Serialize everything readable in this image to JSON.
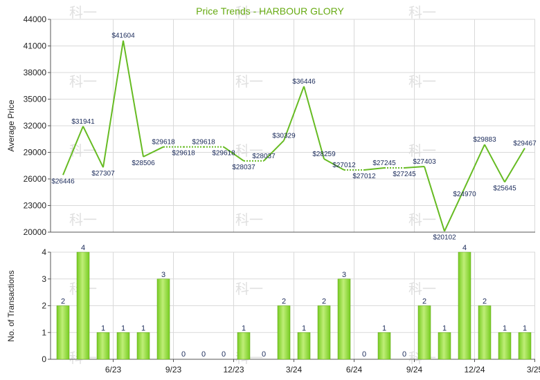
{
  "colors": {
    "line": "#66bb22",
    "bar": "#77cc22",
    "bar_light": "#bfee77",
    "grid": "#d9d9d9",
    "axis": "#555555",
    "title": "#66aa11",
    "watermark": "#e0e0e0"
  },
  "chart_data": [
    {
      "type": "line",
      "title": "Price Trends - HARBOUR GLORY",
      "ylabel": "Average Price",
      "ylim": [
        20000,
        44000
      ],
      "yticks": [
        20000,
        23000,
        26000,
        29000,
        32000,
        35000,
        38000,
        41000,
        44000
      ],
      "x_ticks": [
        "6/23",
        "9/23",
        "12/23",
        "3/24",
        "6/24",
        "9/24",
        "12/24",
        "3/25"
      ],
      "x_tick_months": [
        2,
        5,
        8,
        11,
        14,
        17,
        20,
        23
      ],
      "x_months": [
        0,
        1,
        2,
        3,
        4,
        5,
        6,
        7,
        8,
        9,
        10,
        11,
        12,
        13,
        14,
        15,
        16,
        17,
        18,
        19,
        20,
        21,
        22,
        23
      ],
      "points": [
        {
          "month": 0,
          "value": 26446,
          "label": "$26446",
          "actual": true
        },
        {
          "month": 1,
          "value": 31941,
          "label": "$31941",
          "actual": true
        },
        {
          "month": 2,
          "value": 27307,
          "label": "$27307",
          "actual": true
        },
        {
          "month": 3,
          "value": 41604,
          "label": "$41604",
          "actual": true
        },
        {
          "month": 4,
          "value": 28506,
          "label": "$28506",
          "actual": true
        },
        {
          "month": 5,
          "value": 29618,
          "label": "$29618",
          "actual": true
        },
        {
          "month": 6,
          "value": 29618,
          "label": "$29618",
          "actual": false
        },
        {
          "month": 7,
          "value": 29618,
          "label": "$29618",
          "actual": false
        },
        {
          "month": 8,
          "value": 29618,
          "label": "$29618",
          "actual": false
        },
        {
          "month": 9,
          "value": 28037,
          "label": "$28037",
          "actual": true
        },
        {
          "month": 10,
          "value": 28037,
          "label": "$28037",
          "actual": false
        },
        {
          "month": 11,
          "value": 30329,
          "label": "$30329",
          "actual": true
        },
        {
          "month": 12,
          "value": 36446,
          "label": "$36446",
          "actual": true
        },
        {
          "month": 13,
          "value": 28259,
          "label": "$28259",
          "actual": true
        },
        {
          "month": 14,
          "value": 27012,
          "label": "$27012",
          "actual": true
        },
        {
          "month": 15,
          "value": 27012,
          "label": "$27012",
          "actual": false
        },
        {
          "month": 16,
          "value": 27245,
          "label": "$27245",
          "actual": true
        },
        {
          "month": 17,
          "value": 27245,
          "label": "$27245",
          "actual": false
        },
        {
          "month": 18,
          "value": 27403,
          "label": "$27403",
          "actual": true
        },
        {
          "month": 19,
          "value": 20102,
          "label": "$20102",
          "actual": true
        },
        {
          "month": 20,
          "value": 24970,
          "label": "$24970",
          "actual": true
        },
        {
          "month": 21,
          "value": 29883,
          "label": "$29883",
          "actual": true
        },
        {
          "month": 22,
          "value": 25645,
          "label": "$25645",
          "actual": true
        },
        {
          "month": 23,
          "value": 29467,
          "label": "$29467",
          "actual": true
        }
      ],
      "grid": true
    },
    {
      "type": "bar",
      "ylabel": "No. of Transactions",
      "ylim": [
        0,
        4
      ],
      "yticks": [
        0,
        1,
        2,
        3,
        4
      ],
      "x_months": [
        0,
        1,
        2,
        3,
        4,
        5,
        6,
        7,
        8,
        9,
        10,
        11,
        12,
        13,
        14,
        15,
        16,
        17,
        18,
        19,
        20,
        21,
        22,
        23
      ],
      "values": [
        2,
        4,
        1,
        1,
        1,
        3,
        0,
        0,
        0,
        1,
        0,
        2,
        1,
        2,
        3,
        0,
        1,
        0,
        2,
        1,
        4,
        2,
        1,
        1
      ],
      "grid": true
    }
  ],
  "watermark": "科一"
}
